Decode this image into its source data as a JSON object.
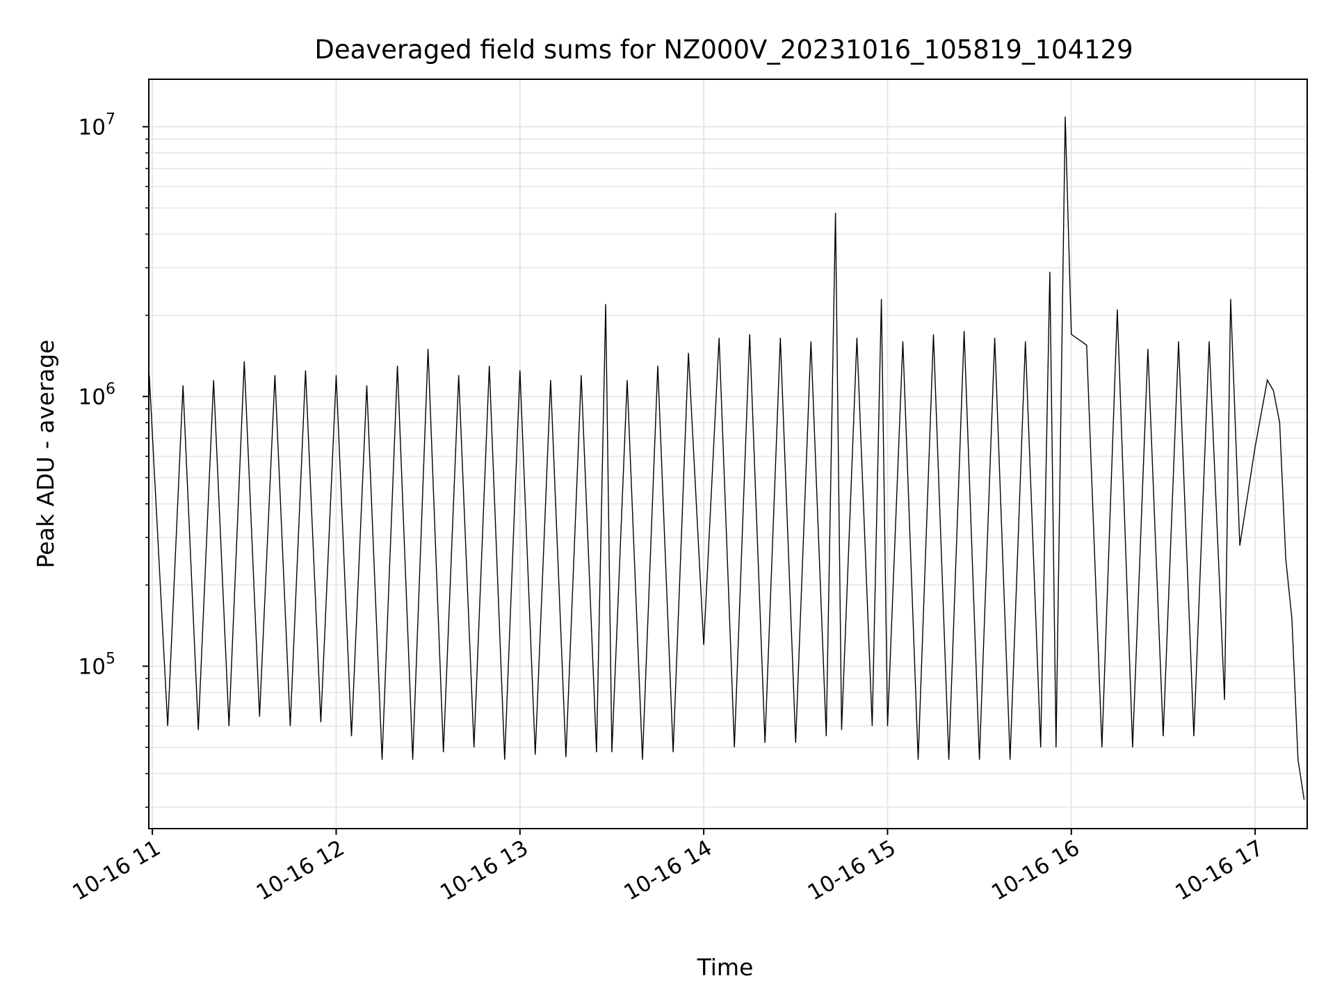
{
  "chart_data": {
    "type": "line",
    "title": "Deaveraged field sums for NZ000V_20231016_105819_104129",
    "xlabel": "Time",
    "ylabel": "Peak ADU - average",
    "yscale": "log",
    "ylim": [
      25000,
      15000000
    ],
    "xlim": [
      "2023-10-16 10:58:50",
      "2023-10-16 17:17:00"
    ],
    "grid": true,
    "line_color": "#000000",
    "x_ticks": [
      {
        "value": "2023-10-16 11:00",
        "label": "10-16 11"
      },
      {
        "value": "2023-10-16 12:00",
        "label": "10-16 12"
      },
      {
        "value": "2023-10-16 13:00",
        "label": "10-16 13"
      },
      {
        "value": "2023-10-16 14:00",
        "label": "10-16 14"
      },
      {
        "value": "2023-10-16 15:00",
        "label": "10-16 15"
      },
      {
        "value": "2023-10-16 16:00",
        "label": "10-16 16"
      },
      {
        "value": "2023-10-16 17:00",
        "label": "10-16 17"
      }
    ],
    "y_ticks": [
      {
        "value": 100000,
        "base": "10",
        "exp": "5"
      },
      {
        "value": 1000000,
        "base": "10",
        "exp": "6"
      },
      {
        "value": 10000000,
        "base": "10",
        "exp": "7"
      }
    ],
    "series": [
      {
        "x": [
          "2023-10-16 10:59",
          "2023-10-16 11:05",
          "2023-10-16 11:10",
          "2023-10-16 11:15",
          "2023-10-16 11:20",
          "2023-10-16 11:25",
          "2023-10-16 11:30",
          "2023-10-16 11:35",
          "2023-10-16 11:40",
          "2023-10-16 11:45",
          "2023-10-16 11:50",
          "2023-10-16 11:55",
          "2023-10-16 12:00",
          "2023-10-16 12:05",
          "2023-10-16 12:10",
          "2023-10-16 12:15",
          "2023-10-16 12:20",
          "2023-10-16 12:25",
          "2023-10-16 12:30",
          "2023-10-16 12:35",
          "2023-10-16 12:40",
          "2023-10-16 12:45",
          "2023-10-16 12:50",
          "2023-10-16 12:55",
          "2023-10-16 13:00",
          "2023-10-16 13:05",
          "2023-10-16 13:10",
          "2023-10-16 13:15",
          "2023-10-16 13:20",
          "2023-10-16 13:25",
          "2023-10-16 13:28",
          "2023-10-16 13:30",
          "2023-10-16 13:35",
          "2023-10-16 13:40",
          "2023-10-16 13:45",
          "2023-10-16 13:50",
          "2023-10-16 13:55",
          "2023-10-16 14:00",
          "2023-10-16 14:05",
          "2023-10-16 14:10",
          "2023-10-16 14:15",
          "2023-10-16 14:20",
          "2023-10-16 14:25",
          "2023-10-16 14:30",
          "2023-10-16 14:35",
          "2023-10-16 14:40",
          "2023-10-16 14:43",
          "2023-10-16 14:45",
          "2023-10-16 14:50",
          "2023-10-16 14:55",
          "2023-10-16 14:58",
          "2023-10-16 15:00",
          "2023-10-16 15:05",
          "2023-10-16 15:10",
          "2023-10-16 15:15",
          "2023-10-16 15:20",
          "2023-10-16 15:25",
          "2023-10-16 15:30",
          "2023-10-16 15:35",
          "2023-10-16 15:40",
          "2023-10-16 15:45",
          "2023-10-16 15:50",
          "2023-10-16 15:53",
          "2023-10-16 15:55",
          "2023-10-16 15:58",
          "2023-10-16 16:00",
          "2023-10-16 16:05",
          "2023-10-16 16:10",
          "2023-10-16 16:15",
          "2023-10-16 16:20",
          "2023-10-16 16:25",
          "2023-10-16 16:30",
          "2023-10-16 16:35",
          "2023-10-16 16:40",
          "2023-10-16 16:45",
          "2023-10-16 16:50",
          "2023-10-16 16:52",
          "2023-10-16 16:55",
          "2023-10-16 17:00",
          "2023-10-16 17:04",
          "2023-10-16 17:06",
          "2023-10-16 17:08",
          "2023-10-16 17:10",
          "2023-10-16 17:12",
          "2023-10-16 17:14",
          "2023-10-16 17:16"
        ],
        "y": [
          1200000,
          60000,
          1100000,
          58000,
          1150000,
          60000,
          1350000,
          65000,
          1200000,
          60000,
          1250000,
          62000,
          1200000,
          55000,
          1100000,
          45000,
          1300000,
          45000,
          1500000,
          48000,
          1200000,
          50000,
          1300000,
          45000,
          1250000,
          47000,
          1150000,
          46000,
          1200000,
          48000,
          2200000,
          48000,
          1150000,
          45000,
          1300000,
          48000,
          1450000,
          120000,
          1650000,
          50000,
          1700000,
          52000,
          1650000,
          52000,
          1600000,
          55000,
          4800000,
          58000,
          1650000,
          60000,
          2300000,
          60000,
          1600000,
          45000,
          1700000,
          45000,
          1750000,
          45000,
          1650000,
          45000,
          1600000,
          50000,
          2900000,
          50000,
          10900000,
          1700000,
          1550000,
          50000,
          2100000,
          50000,
          1500000,
          55000,
          1600000,
          55000,
          1600000,
          75000,
          2300000,
          280000,
          650000,
          1150000,
          1050000,
          800000,
          250000,
          150000,
          45000,
          32000
        ]
      }
    ]
  }
}
